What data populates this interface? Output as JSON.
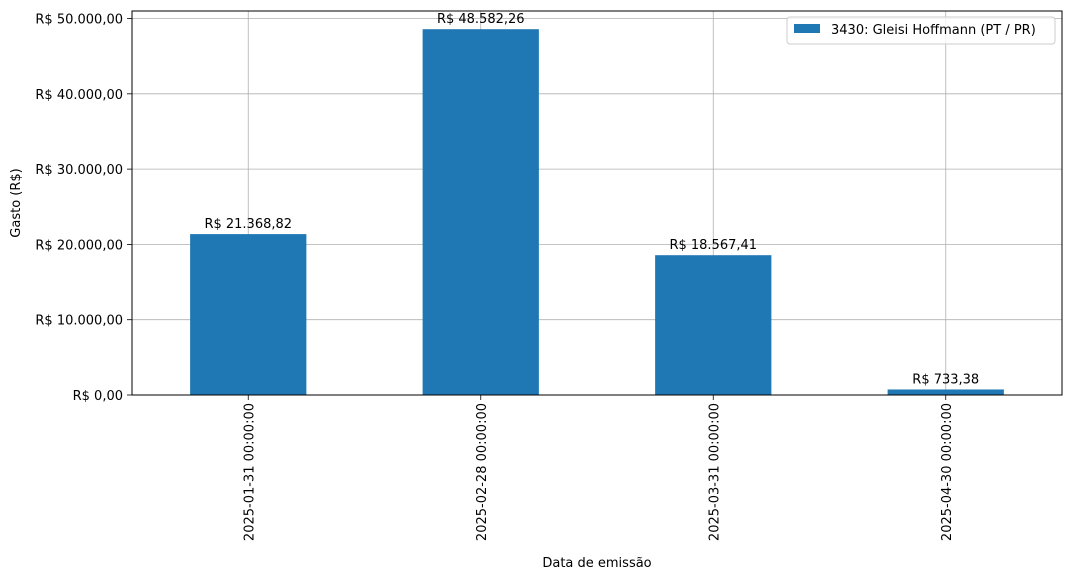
{
  "chart_data": {
    "type": "bar",
    "categories": [
      "2025-01-31 00:00:00",
      "2025-02-28 00:00:00",
      "2025-03-31 00:00:00",
      "2025-04-30 00:00:00"
    ],
    "series": [
      {
        "name": "3430: Gleisi Hoffmann (PT / PR)",
        "values": [
          21368.82,
          48582.26,
          18567.41,
          733.38
        ],
        "labels": [
          "R$ 21.368,82",
          "R$ 48.582,26",
          "R$ 18.567,41",
          "R$ 733,38"
        ],
        "color": "#1f77b4"
      }
    ],
    "title": "",
    "xlabel": "Data de emissão",
    "ylabel": "Gasto (R$)",
    "ylim": [
      0,
      51000
    ],
    "yticks": [
      0,
      10000,
      20000,
      30000,
      40000,
      50000
    ],
    "ytick_labels": [
      "R$ 0,00",
      "R$ 10.000,00",
      "R$ 20.000,00",
      "R$ 30.000,00",
      "R$ 40.000,00",
      "R$ 50.000,00"
    ],
    "grid": true,
    "legend_position": "top-right"
  }
}
